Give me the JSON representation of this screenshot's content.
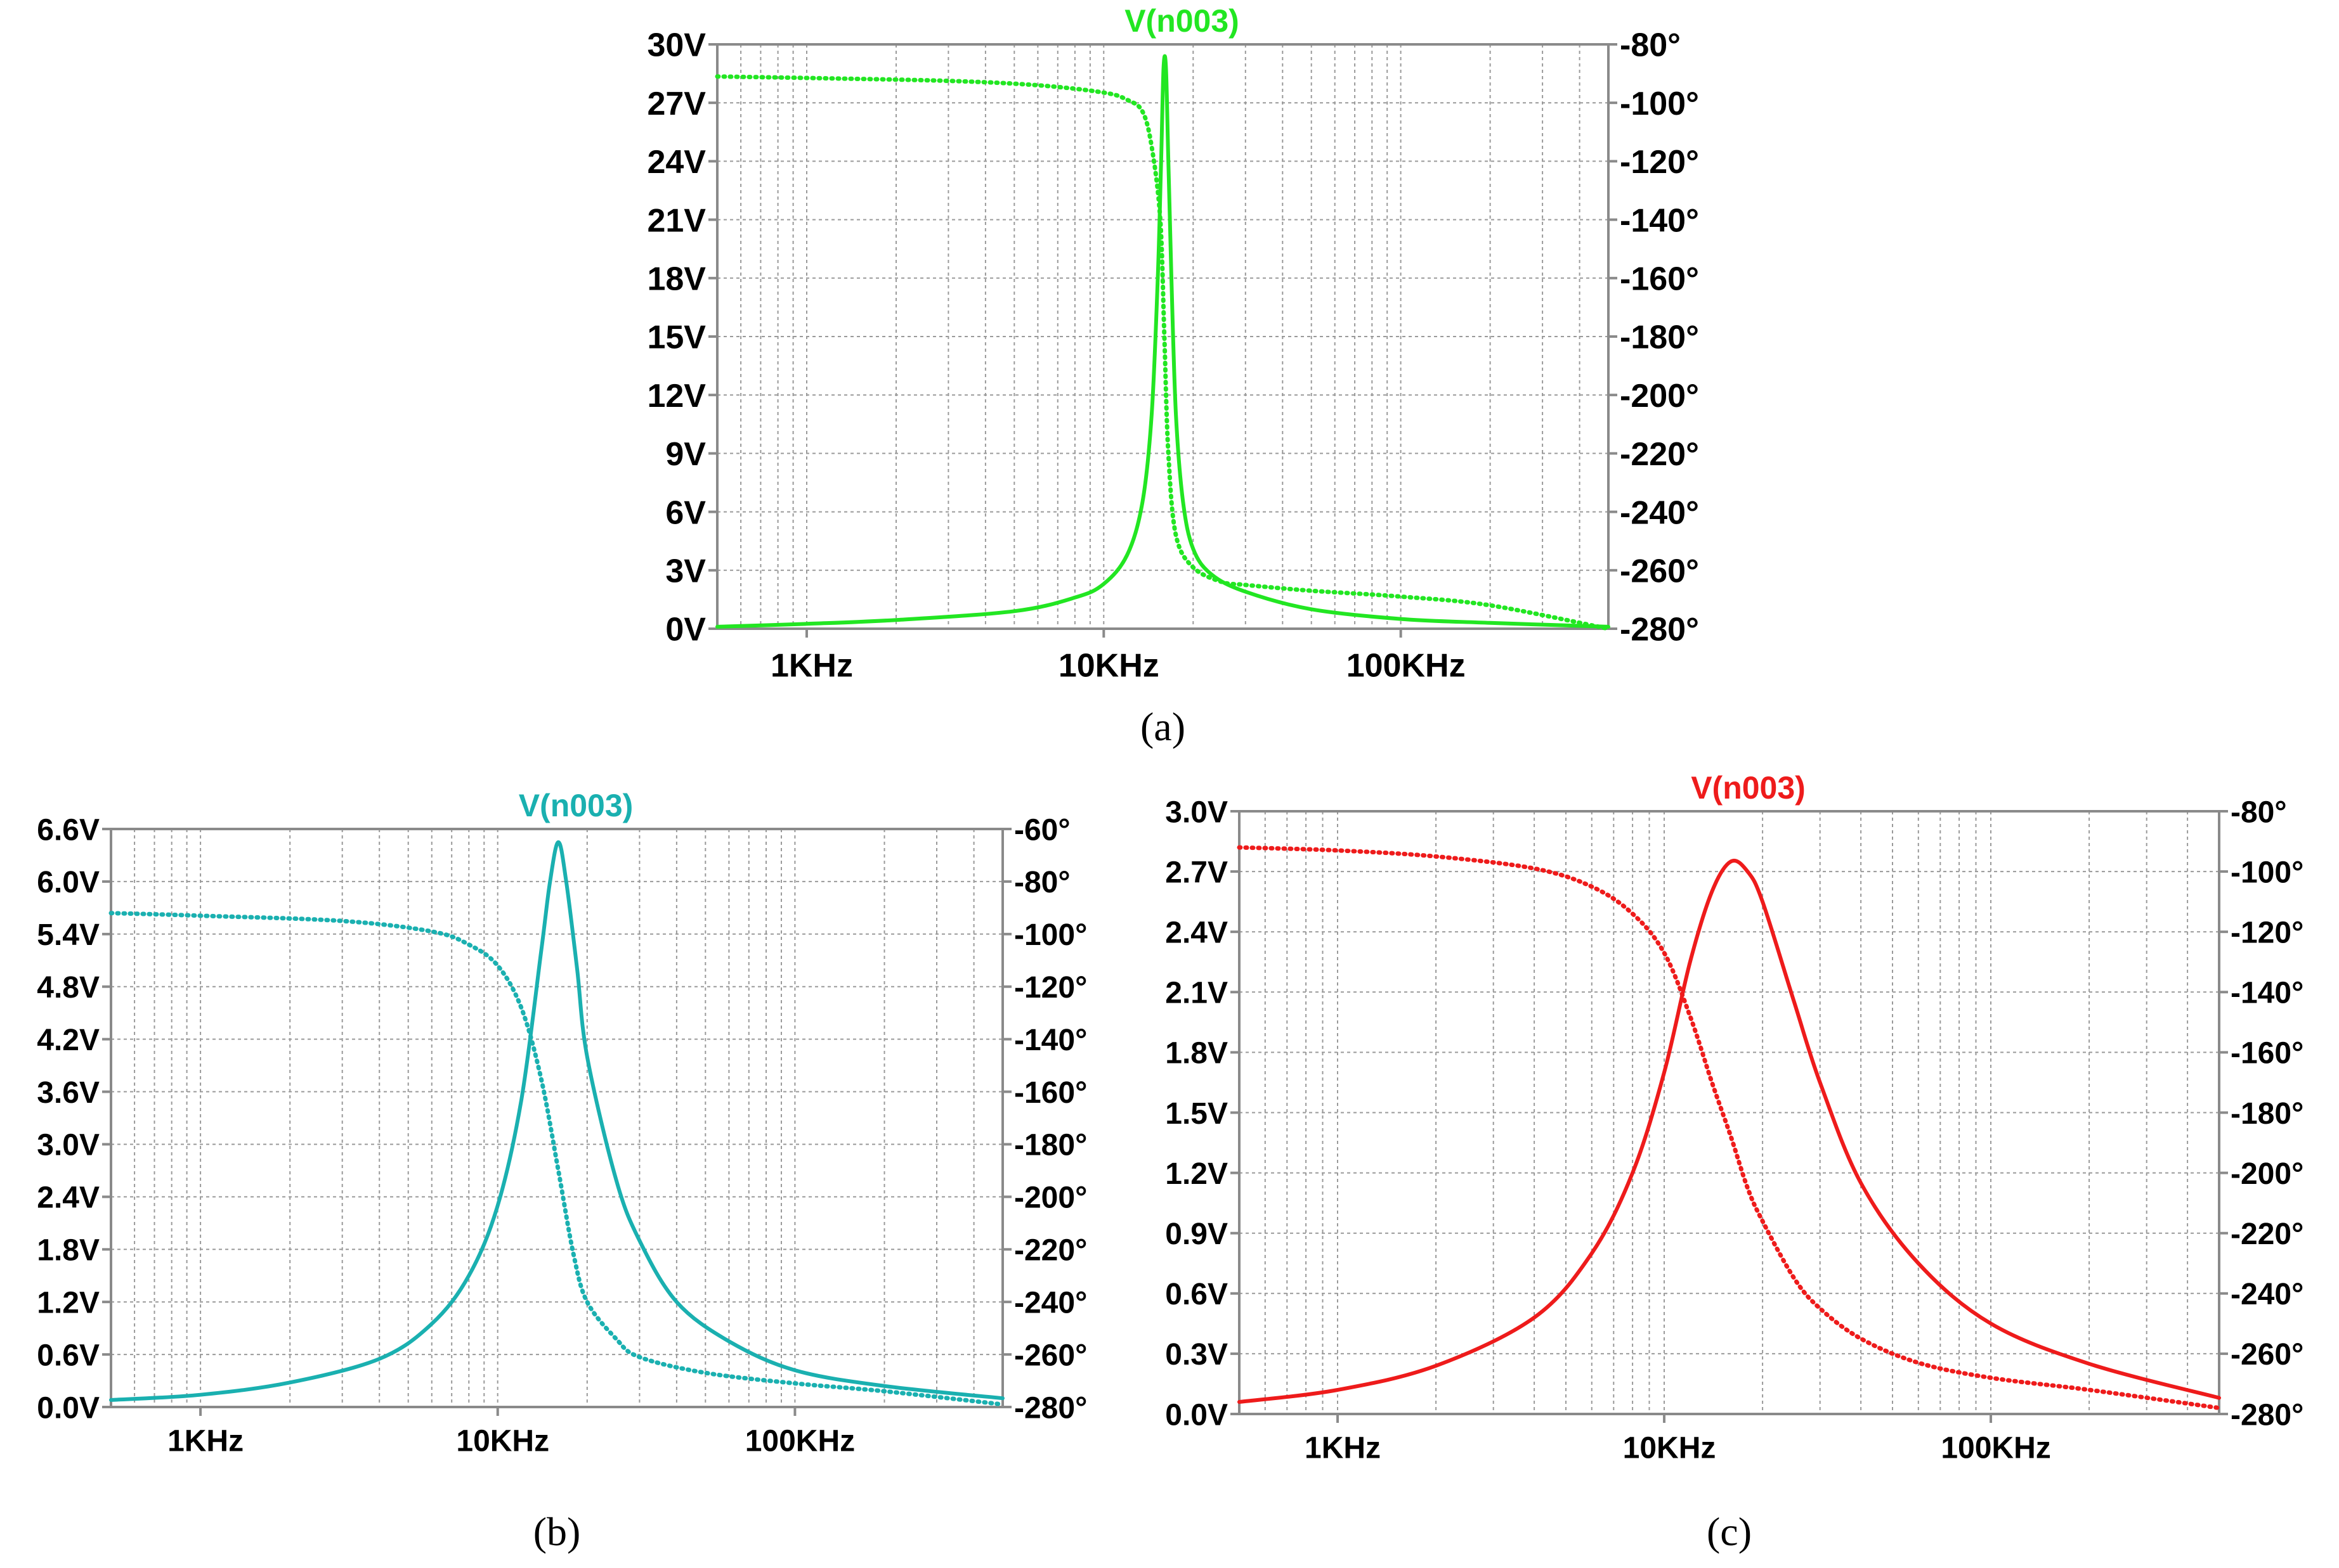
{
  "chart_data": [
    {
      "type": "line",
      "panel": "a",
      "caption": "(a)",
      "title": "V(n003)",
      "color": "#22e622",
      "xlabel": "",
      "ylabel": "",
      "x_scale": "log",
      "xlim": [
        500,
        500000
      ],
      "x_tick_values": [
        1000,
        10000,
        100000
      ],
      "x_tick_labels": [
        "1KHz",
        "10KHz",
        "100KHz"
      ],
      "ylim": [
        0,
        30
      ],
      "y_tick_labels": [
        "0V",
        "3V",
        "6V",
        "9V",
        "12V",
        "15V",
        "18V",
        "21V",
        "24V",
        "27V",
        "30V"
      ],
      "y2lim": [
        -280,
        -80
      ],
      "y2_tick_labels": [
        "-280°",
        "-260°",
        "-240°",
        "-220°",
        "-200°",
        "-180°",
        "-160°",
        "-140°",
        "-120°",
        "-100°",
        "-80°"
      ],
      "grid": true,
      "series": [
        {
          "name": "magnitude",
          "axis": "left",
          "style": "solid",
          "x": [
            500,
            1000,
            2000,
            5000,
            8000,
            10000,
            12000,
            13500,
            14500,
            15200,
            15600,
            15900,
            16200,
            16500,
            16900,
            17500,
            18500,
            20000,
            23000,
            30000,
            50000,
            100000,
            200000,
            500000
          ],
          "values": [
            0.1,
            0.25,
            0.45,
            0.9,
            1.6,
            2.3,
            3.8,
            6.5,
            11,
            18,
            24,
            28.8,
            28.8,
            24,
            18,
            11,
            6.5,
            4.1,
            2.8,
            1.9,
            1.0,
            0.5,
            0.3,
            0.1
          ]
        },
        {
          "name": "phase",
          "axis": "right",
          "style": "dotted",
          "x": [
            500,
            1000,
            3000,
            6000,
            10000,
            12000,
            13500,
            14500,
            15500,
            16000,
            16500,
            17500,
            20000,
            25000,
            30000,
            50000,
            100000,
            200000,
            500000
          ],
          "values": [
            -91,
            -91.5,
            -92.5,
            -94,
            -96.5,
            -99,
            -103,
            -115,
            -140,
            -180,
            -220,
            -248,
            -259,
            -264,
            -265,
            -267,
            -269,
            -272,
            -280
          ]
        }
      ]
    },
    {
      "type": "line",
      "panel": "b",
      "caption": "(b)",
      "title": "V(n003)",
      "color": "#1ab0b0",
      "xlabel": "",
      "ylabel": "",
      "x_scale": "log",
      "xlim": [
        500,
        500000
      ],
      "x_tick_values": [
        1000,
        10000,
        100000
      ],
      "x_tick_labels": [
        "1KHz",
        "10KHz",
        "100KHz"
      ],
      "ylim": [
        0,
        6.6
      ],
      "y_tick_labels": [
        "0.0V",
        "0.6V",
        "1.2V",
        "1.8V",
        "2.4V",
        "3.0V",
        "3.6V",
        "4.2V",
        "4.8V",
        "5.4V",
        "6.0V",
        "6.6V"
      ],
      "y2lim": [
        -280,
        -60
      ],
      "y2_tick_labels": [
        "-280°",
        "-260°",
        "-240°",
        "-220°",
        "-200°",
        "-180°",
        "-160°",
        "-140°",
        "-120°",
        "-100°",
        "-80°",
        "-60°"
      ],
      "grid": true,
      "series": [
        {
          "name": "magnitude",
          "axis": "left",
          "style": "solid",
          "x": [
            500,
            1000,
            2000,
            4000,
            6000,
            8000,
            10000,
            12000,
            14000,
            15000,
            16000,
            17000,
            18500,
            20000,
            25000,
            30000,
            40000,
            60000,
            100000,
            200000,
            500000
          ],
          "values": [
            0.08,
            0.14,
            0.28,
            0.55,
            0.95,
            1.5,
            2.3,
            3.5,
            5.2,
            6.0,
            6.45,
            6.0,
            5.0,
            4.0,
            2.6,
            1.9,
            1.2,
            0.75,
            0.42,
            0.24,
            0.1
          ]
        },
        {
          "name": "phase",
          "axis": "right",
          "style": "dotted",
          "x": [
            500,
            1000,
            3000,
            6000,
            8000,
            10000,
            12000,
            14000,
            16000,
            18000,
            20000,
            25000,
            30000,
            50000,
            100000,
            200000,
            500000
          ],
          "values": [
            -92,
            -93,
            -95,
            -99,
            -104,
            -112,
            -128,
            -155,
            -190,
            -222,
            -240,
            -254,
            -261,
            -267,
            -271,
            -274,
            -279
          ]
        }
      ]
    },
    {
      "type": "line",
      "panel": "c",
      "caption": "(c)",
      "title": "V(n003)",
      "color": "#ee1b1b",
      "xlabel": "",
      "ylabel": "",
      "x_scale": "log",
      "xlim": [
        500,
        500000
      ],
      "x_tick_values": [
        1000,
        10000,
        100000
      ],
      "x_tick_labels": [
        "1KHz",
        "10KHz",
        "100KHz"
      ],
      "ylim": [
        0,
        3.0
      ],
      "y_tick_labels": [
        "0.0V",
        "0.3V",
        "0.6V",
        "0.9V",
        "1.2V",
        "1.5V",
        "1.8V",
        "2.1V",
        "2.4V",
        "2.7V",
        "3.0V"
      ],
      "y2lim": [
        -280,
        -80
      ],
      "y2_tick_labels": [
        "-280°",
        "-260°",
        "-240°",
        "-220°",
        "-200°",
        "-180°",
        "-160°",
        "-140°",
        "-120°",
        "-100°",
        "-80°"
      ],
      "grid": true,
      "series": [
        {
          "name": "magnitude",
          "axis": "left",
          "style": "solid",
          "x": [
            500,
            1000,
            2000,
            4000,
            6000,
            8000,
            10000,
            12000,
            14000,
            16000,
            18000,
            20000,
            25000,
            30000,
            40000,
            60000,
            100000,
            200000,
            500000
          ],
          "values": [
            0.06,
            0.12,
            0.24,
            0.48,
            0.8,
            1.2,
            1.7,
            2.25,
            2.6,
            2.75,
            2.7,
            2.55,
            2.05,
            1.65,
            1.15,
            0.75,
            0.45,
            0.25,
            0.08
          ]
        },
        {
          "name": "phase",
          "axis": "right",
          "style": "dotted",
          "x": [
            500,
            1000,
            2000,
            4000,
            6000,
            8000,
            10000,
            12000,
            14000,
            16000,
            18000,
            20000,
            25000,
            30000,
            40000,
            60000,
            100000,
            200000,
            500000
          ],
          "values": [
            -92,
            -93,
            -95,
            -99,
            -105,
            -114,
            -127,
            -148,
            -170,
            -188,
            -205,
            -216,
            -235,
            -245,
            -255,
            -263,
            -268,
            -272,
            -278
          ]
        }
      ]
    }
  ]
}
